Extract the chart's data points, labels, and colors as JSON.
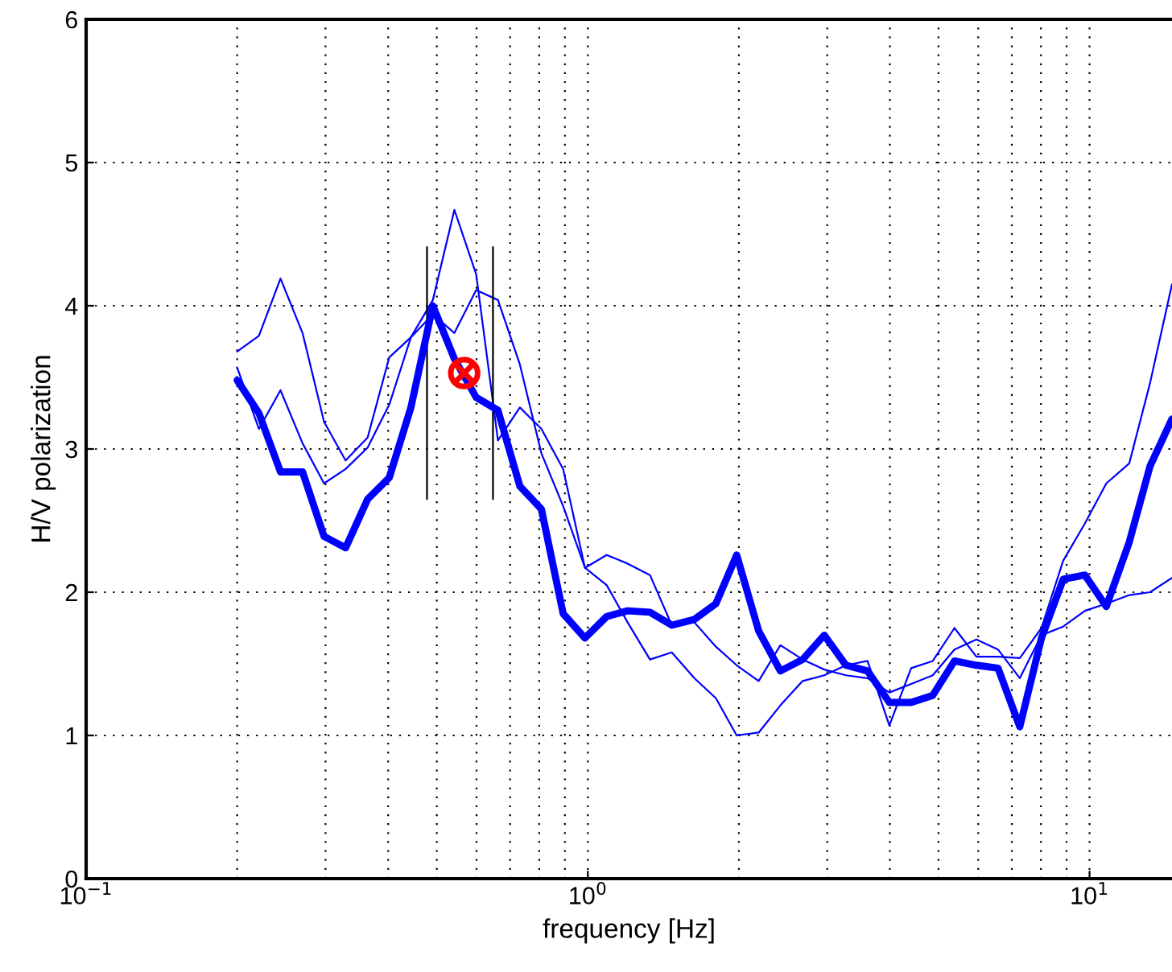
{
  "chart_data": {
    "type": "line",
    "xlabel": "frequency [Hz]",
    "ylabel": "H/V polarization",
    "log": "x",
    "grid": true,
    "line_style": "solid",
    "marker": "none",
    "xlim": [
      0.1,
      14.6
    ],
    "xticks": [
      {
        "value": 0.1,
        "label": "10$^{−1}$"
      },
      {
        "value": 1,
        "label": "10$^{0}$"
      },
      {
        "value": 10,
        "label": "10$^{1}$"
      }
    ],
    "ylim": [
      0,
      6
    ],
    "yticks": [
      0,
      1,
      2,
      3,
      4,
      5,
      6
    ],
    "x": [
      0.2,
      0.221,
      0.244,
      0.27,
      0.298,
      0.329,
      0.364,
      0.402,
      0.444,
      0.491,
      0.542,
      0.599,
      0.662,
      0.732,
      0.808,
      0.893,
      0.987,
      1.09,
      1.2,
      1.33,
      1.47,
      1.63,
      1.8,
      1.98,
      2.19,
      2.42,
      2.68,
      2.96,
      3.27,
      3.61,
      3.99,
      4.41,
      4.87,
      5.38,
      5.95,
      6.57,
      7.26,
      8.02,
      8.86,
      9.79,
      10.8,
      12.0,
      13.2,
      14.6
    ],
    "series": [
      {
        "color": "#0000ff",
        "values": [
          3.48,
          3.25,
          2.84,
          2.84,
          2.39,
          2.31,
          2.65,
          2.8,
          3.29,
          4.0,
          3.63,
          3.36,
          3.27,
          2.74,
          2.58,
          1.85,
          1.68,
          1.83,
          1.87,
          1.86,
          1.77,
          1.81,
          1.92,
          2.26,
          1.73,
          1.45,
          1.53,
          1.7,
          1.49,
          1.45,
          1.23,
          1.23,
          1.28,
          1.52,
          1.49,
          1.47,
          1.06,
          1.68,
          2.09,
          2.12,
          1.9,
          2.35,
          2.88,
          3.21
        ]
      },
      {
        "color": "#0000ff",
        "values": [
          3.68,
          3.79,
          4.19,
          3.81,
          3.19,
          2.92,
          3.08,
          3.64,
          3.78,
          3.94,
          3.81,
          4.11,
          4.04,
          3.59,
          2.97,
          2.6,
          2.17,
          2.05,
          1.79,
          1.53,
          1.58,
          1.4,
          1.26,
          1.0,
          1.02,
          1.21,
          1.38,
          1.42,
          1.49,
          1.52,
          1.07,
          1.47,
          1.52,
          1.75,
          1.55,
          1.55,
          1.54,
          1.75,
          2.22,
          2.48,
          2.76,
          2.9,
          3.46,
          4.15
        ]
      },
      {
        "color": "#0000ff",
        "values": [
          3.57,
          3.14,
          3.41,
          3.04,
          2.76,
          2.86,
          3.01,
          3.31,
          3.78,
          4.04,
          4.67,
          4.22,
          3.06,
          3.29,
          3.14,
          2.86,
          2.17,
          2.26,
          2.2,
          2.12,
          1.77,
          1.79,
          1.62,
          1.49,
          1.38,
          1.63,
          1.53,
          1.46,
          1.42,
          1.4,
          1.3,
          1.36,
          1.42,
          1.6,
          1.67,
          1.6,
          1.4,
          1.7,
          1.76,
          1.87,
          1.92,
          1.98,
          2.0,
          2.1
        ]
      },
      {
        "color": "#000000",
        "x": [
          0.478,
          0.478
        ],
        "values": [
          2.65,
          4.41
        ]
      },
      {
        "color": "#000000",
        "x": [
          0.647,
          0.647
        ],
        "values": [
          2.65,
          4.41
        ]
      },
      {
        "type": "scatter",
        "color": "#ff0000",
        "marker": "circle",
        "x": [
          0.567
        ],
        "values": [
          3.53
        ]
      }
    ]
  }
}
